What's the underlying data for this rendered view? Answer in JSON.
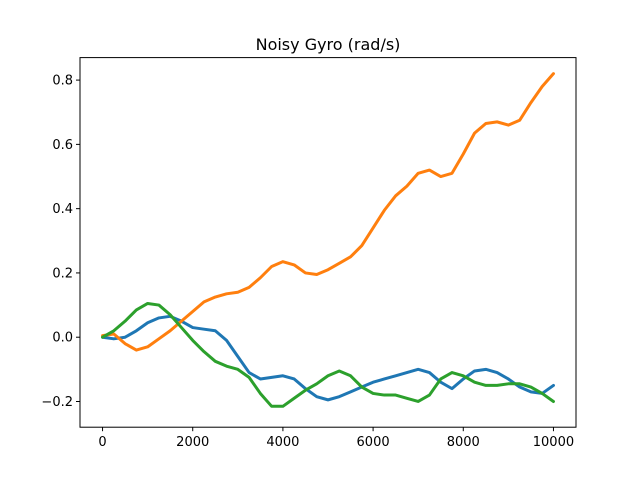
{
  "chart_data": {
    "type": "line",
    "title": "Noisy Gyro (rad/s)",
    "xlabel": "",
    "ylabel": "",
    "xlim": [
      -500,
      10500
    ],
    "ylim": [
      -0.28,
      0.87
    ],
    "xticks": [
      0,
      2000,
      4000,
      6000,
      8000,
      10000
    ],
    "xtick_labels": [
      "0",
      "2000",
      "4000",
      "6000",
      "8000",
      "10000"
    ],
    "yticks": [
      -0.2,
      0.0,
      0.2,
      0.4,
      0.6,
      0.8
    ],
    "ytick_labels": [
      "−0.2",
      "0.0",
      "0.2",
      "0.4",
      "0.6",
      "0.8"
    ],
    "grid": false,
    "legend": "none",
    "series": [
      {
        "color": "#1f77b4",
        "x": [
          0,
          250,
          500,
          750,
          1000,
          1250,
          1500,
          1750,
          2000,
          2250,
          2500,
          2750,
          3000,
          3250,
          3500,
          3750,
          4000,
          4250,
          4500,
          4750,
          5000,
          5250,
          5500,
          5750,
          6000,
          6250,
          6500,
          6750,
          7000,
          7250,
          7500,
          7750,
          8000,
          8250,
          8500,
          8750,
          9000,
          9250,
          9500,
          9750,
          10000
        ],
        "y": [
          0.0,
          -0.005,
          0.0,
          0.02,
          0.045,
          0.06,
          0.065,
          0.05,
          0.03,
          0.025,
          0.02,
          -0.01,
          -0.06,
          -0.11,
          -0.13,
          -0.125,
          -0.12,
          -0.13,
          -0.16,
          -0.185,
          -0.195,
          -0.185,
          -0.17,
          -0.155,
          -0.14,
          -0.13,
          -0.12,
          -0.11,
          -0.1,
          -0.11,
          -0.14,
          -0.16,
          -0.13,
          -0.105,
          -0.1,
          -0.11,
          -0.13,
          -0.155,
          -0.17,
          -0.175,
          -0.15
        ]
      },
      {
        "color": "#ff7f0e",
        "x": [
          0,
          250,
          500,
          750,
          1000,
          1250,
          1500,
          1750,
          2000,
          2250,
          2500,
          2750,
          3000,
          3250,
          3500,
          3750,
          4000,
          4250,
          4500,
          4750,
          5000,
          5250,
          5500,
          5750,
          6000,
          6250,
          6500,
          6750,
          7000,
          7250,
          7500,
          7750,
          8000,
          8250,
          8500,
          8750,
          9000,
          9250,
          9500,
          9750,
          10000
        ],
        "y": [
          0.005,
          0.01,
          -0.02,
          -0.04,
          -0.03,
          -0.005,
          0.02,
          0.05,
          0.08,
          0.11,
          0.125,
          0.135,
          0.14,
          0.155,
          0.185,
          0.22,
          0.235,
          0.225,
          0.2,
          0.195,
          0.21,
          0.23,
          0.25,
          0.285,
          0.34,
          0.395,
          0.44,
          0.47,
          0.51,
          0.52,
          0.5,
          0.51,
          0.57,
          0.635,
          0.665,
          0.67,
          0.66,
          0.675,
          0.73,
          0.78,
          0.82
        ]
      },
      {
        "color": "#2ca02c",
        "x": [
          0,
          250,
          500,
          750,
          1000,
          1250,
          1500,
          1750,
          2000,
          2250,
          2500,
          2750,
          3000,
          3250,
          3500,
          3750,
          4000,
          4250,
          4500,
          4750,
          5000,
          5250,
          5500,
          5750,
          6000,
          6250,
          6500,
          6750,
          7000,
          7250,
          7500,
          7750,
          8000,
          8250,
          8500,
          8750,
          9000,
          9250,
          9500,
          9750,
          10000
        ],
        "y": [
          0.0,
          0.02,
          0.05,
          0.085,
          0.105,
          0.1,
          0.07,
          0.03,
          -0.01,
          -0.045,
          -0.075,
          -0.09,
          -0.1,
          -0.125,
          -0.175,
          -0.215,
          -0.215,
          -0.19,
          -0.165,
          -0.145,
          -0.12,
          -0.105,
          -0.12,
          -0.155,
          -0.175,
          -0.18,
          -0.18,
          -0.19,
          -0.2,
          -0.18,
          -0.13,
          -0.11,
          -0.12,
          -0.14,
          -0.15,
          -0.15,
          -0.145,
          -0.145,
          -0.155,
          -0.175,
          -0.2
        ]
      }
    ]
  }
}
